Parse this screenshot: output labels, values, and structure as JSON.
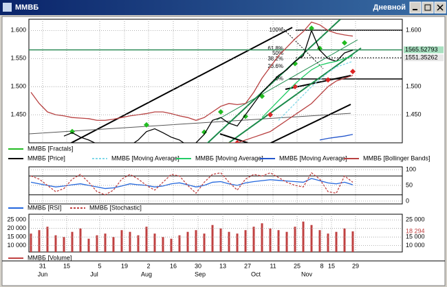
{
  "window": {
    "title": "ММВБ",
    "timeframe": "Дневной"
  },
  "chart_data": [
    {
      "type": "line",
      "ylim": [
        1400,
        1620
      ],
      "yticks": [
        {
          "value": 1600,
          "label": "1.600"
        },
        {
          "value": 1550,
          "label": "1.550"
        },
        {
          "value": 1500,
          "label": "1.500"
        },
        {
          "value": 1450,
          "label": "1.450"
        }
      ],
      "hlines": [
        {
          "value": 1565.52793,
          "color": "#2e8b57"
        },
        {
          "value": 1551.35262,
          "color": "#000000"
        }
      ],
      "fib_labels": [
        "100%",
        "61.8%",
        "50%",
        "38.2%",
        "23.6%",
        "0%"
      ],
      "series": [
        {
          "name": "ММВБ [Fractals]",
          "color": "#22bb22",
          "down_color": "#dd2222",
          "values": [
            null,
            null,
            null,
            null,
            null,
            1420,
            null,
            null,
            null,
            null,
            null,
            null,
            null,
            null,
            1432,
            null,
            null,
            null,
            null,
            null,
            null,
            1419,
            null,
            1455,
            null,
            null,
            1447,
            null,
            1483,
            null,
            null,
            null,
            1541,
            null,
            1604,
            1568,
            null,
            null,
            1578,
            null
          ],
          "down": [
            null,
            null,
            null,
            null,
            null,
            null,
            null,
            null,
            null,
            null,
            null,
            null,
            null,
            null,
            null,
            null,
            null,
            null,
            null,
            null,
            null,
            null,
            null,
            null,
            null,
            1400,
            null,
            null,
            null,
            1450,
            null,
            null,
            1500,
            null,
            null,
            null,
            1512,
            null,
            null,
            1527
          ]
        },
        {
          "name": "ММВБ [Price]",
          "color": "#000000",
          "values": [
            null,
            null,
            null,
            null,
            1412,
            1418,
            1410,
            1405,
            1398,
            1395,
            1392,
            1390,
            1395,
            1405,
            1420,
            1425,
            1418,
            1410,
            1405,
            1395,
            1400,
            1415,
            1440,
            1445,
            1435,
            1430,
            1450,
            1470,
            1490,
            1505,
            1520,
            1530,
            1545,
            1555,
            1600,
            1565,
            1550,
            1545,
            1560,
            1565
          ]
        },
        {
          "name": "ММВБ [Moving Average]",
          "color": "#7fd8e8",
          "dash": true,
          "values": [
            null,
            null,
            null,
            null,
            null,
            null,
            null,
            null,
            null,
            null,
            null,
            null,
            null,
            null,
            null,
            null,
            null,
            null,
            null,
            null,
            null,
            null,
            null,
            null,
            null,
            null,
            null,
            null,
            null,
            null,
            1440,
            1455,
            1470,
            1485,
            1500,
            1512,
            1525,
            1535,
            1540,
            1545
          ]
        },
        {
          "name": "ММВБ [Moving Average]",
          "color": "#22cc66",
          "values": [
            null,
            null,
            null,
            null,
            null,
            null,
            null,
            null,
            null,
            null,
            null,
            null,
            null,
            null,
            null,
            null,
            null,
            null,
            null,
            null,
            null,
            null,
            null,
            null,
            null,
            null,
            null,
            null,
            1445,
            1460,
            1475,
            1490,
            1505,
            1518,
            1530,
            1538,
            1542,
            1545,
            1550,
            1555
          ]
        },
        {
          "name": "ММВБ [Moving Average]",
          "color": "#2255cc",
          "values": [
            null,
            null,
            null,
            null,
            null,
            null,
            null,
            null,
            null,
            null,
            null,
            null,
            null,
            null,
            null,
            null,
            null,
            null,
            null,
            null,
            null,
            null,
            null,
            null,
            null,
            null,
            null,
            null,
            null,
            null,
            null,
            null,
            null,
            null,
            null,
            1405,
            1408,
            1410,
            1412,
            1415
          ]
        },
        {
          "name": "ММВБ [Bollinger Bands]",
          "color": "#b84040",
          "values": [
            1490,
            1470,
            1455,
            1450,
            1448,
            1445,
            1444,
            1443,
            1440,
            1440,
            1442,
            1445,
            1448,
            1450,
            1452,
            1455,
            1455,
            1452,
            1448,
            1445,
            1440,
            1445,
            1455,
            1465,
            1470,
            1468,
            1470,
            1490,
            1515,
            1535,
            1555,
            1570,
            1585,
            1598,
            1615,
            1610,
            1600,
            1595,
            1592,
            1590
          ],
          "lower": [
            1380,
            1385,
            1385,
            1380,
            1375,
            1372,
            1370,
            1368,
            1365,
            1365,
            1365,
            1368,
            1370,
            1372,
            1378,
            1380,
            1380,
            1378,
            1375,
            1370,
            1368,
            1370,
            1380,
            1395,
            1400,
            1400,
            1405,
            1410,
            1415,
            1420,
            1430,
            1440,
            1450,
            1460,
            1470,
            1485,
            1500,
            1510,
            1515,
            1520
          ]
        }
      ]
    },
    {
      "type": "line",
      "ylim": [
        -9,
        109
      ],
      "yticks": [
        100,
        50,
        0
      ],
      "levels": [
        80,
        20
      ],
      "series": [
        {
          "name": "ММВБ [RSI]",
          "color": "#2266dd",
          "values": [
            60,
            55,
            50,
            45,
            48,
            52,
            55,
            50,
            45,
            40,
            42,
            48,
            55,
            52,
            50,
            45,
            48,
            55,
            58,
            52,
            45,
            50,
            60,
            62,
            55,
            50,
            58,
            62,
            65,
            68,
            66,
            64,
            62,
            60,
            72,
            65,
            58,
            55,
            60,
            52
          ]
        },
        {
          "name": "ММВБ [Stochastic]",
          "color": "#c04040",
          "dash": true,
          "values": [
            80,
            70,
            50,
            30,
            40,
            70,
            85,
            60,
            30,
            20,
            35,
            70,
            85,
            70,
            50,
            35,
            60,
            85,
            80,
            50,
            25,
            60,
            85,
            90,
            60,
            35,
            70,
            85,
            80,
            90,
            75,
            60,
            50,
            45,
            90,
            70,
            30,
            25,
            80,
            60
          ]
        }
      ]
    },
    {
      "type": "bar",
      "ylim": [
        6250,
        28300
      ],
      "yticks": [
        {
          "value": 25000,
          "label": "25 000"
        },
        {
          "value": 20000,
          "label": "20 000"
        },
        {
          "value": 15000,
          "label": "15 000"
        },
        {
          "value": 10000,
          "label": "10 000"
        }
      ],
      "right_ticks": [
        {
          "value": 25000,
          "label": "25 000"
        },
        {
          "value": 15000,
          "label": "15 000"
        },
        {
          "value": 10000,
          "label": "10 000"
        }
      ],
      "series": [
        {
          "name": "ММВБ [Volume]",
          "color": "#c04040",
          "values": [
            17000,
            19000,
            21000,
            16000,
            15000,
            18000,
            20000,
            14000,
            16000,
            17000,
            15000,
            19000,
            18000,
            16000,
            21000,
            17000,
            15000,
            14000,
            16000,
            18000,
            19000,
            17000,
            22000,
            20000,
            18000,
            17000,
            19000,
            21000,
            23000,
            20000,
            19000,
            18000,
            21000,
            24000,
            22000,
            19000,
            17000,
            18000,
            20000,
            18294
          ],
          "last_value_label": {
            "value": 18294,
            "label": "18 294"
          }
        }
      ]
    }
  ],
  "date_axis": {
    "days": [
      "31",
      "15",
      "5",
      "19",
      "2",
      "16",
      "30",
      "13",
      "27",
      "11",
      "25",
      "8",
      "15",
      "29"
    ],
    "months": [
      "Jun",
      "Jul",
      "Aug",
      "Sep",
      "Oct",
      "Nov"
    ]
  }
}
